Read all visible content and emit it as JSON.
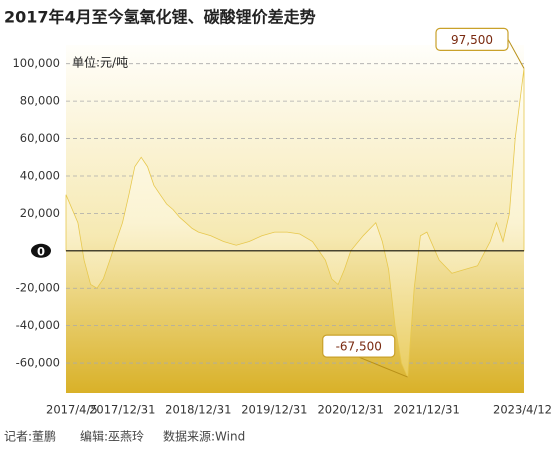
{
  "chart_data": {
    "type": "area",
    "title": "2017年4月至今氢氧化锂、碳酸锂价差走势",
    "unit_label": "单位:元/吨",
    "credits": [
      "记者:董鹏",
      "编辑:巫燕玲",
      "数据来源:Wind"
    ],
    "x": [
      "2017/4/5",
      "2017/6/1",
      "2017/7/1",
      "2017/8/1",
      "2017/9/1",
      "2017/10/1",
      "2017/11/1",
      "2017/12/1",
      "2018/1/1",
      "2018/2/1",
      "2018/3/1",
      "2018/4/1",
      "2018/5/1",
      "2018/6/1",
      "2018/7/1",
      "2018/8/1",
      "2018/9/1",
      "2018/10/1",
      "2018/11/1",
      "2018/12/1",
      "2019/1/1",
      "2019/3/1",
      "2019/5/1",
      "2019/7/1",
      "2019/9/1",
      "2019/11/1",
      "2020/1/1",
      "2020/3/1",
      "2020/5/1",
      "2020/7/1",
      "2020/9/1",
      "2020/10/1",
      "2020/11/1",
      "2020/12/1",
      "2021/1/1",
      "2021/3/1",
      "2021/5/1",
      "2021/6/1",
      "2021/7/1",
      "2021/8/1",
      "2021/9/1",
      "2021/10/1",
      "2021/11/1",
      "2021/12/1",
      "2022/1/1",
      "2022/3/1",
      "2022/5/1",
      "2022/7/1",
      "2022/9/1",
      "2022/11/1",
      "2022/12/1",
      "2023/1/1",
      "2023/2/1",
      "2023/3/1",
      "2023/4/12"
    ],
    "values": [
      30000,
      15000,
      -5000,
      -18000,
      -20000,
      -15000,
      -5000,
      5000,
      15000,
      30000,
      45000,
      50000,
      45000,
      35000,
      30000,
      25000,
      22000,
      18000,
      15000,
      12000,
      10000,
      8000,
      5000,
      3000,
      5000,
      8000,
      10000,
      10000,
      9000,
      5000,
      -5000,
      -15000,
      -18000,
      -10000,
      0,
      8000,
      15000,
      5000,
      -10000,
      -40000,
      -60000,
      -67500,
      -20000,
      8000,
      10000,
      -5000,
      -12000,
      -10000,
      -8000,
      5000,
      15000,
      5000,
      20000,
      60000,
      97500
    ],
    "value_labels": [
      null,
      null,
      null,
      null,
      null,
      null,
      null,
      null,
      null,
      null,
      null,
      null,
      null,
      null,
      null,
      null,
      null,
      null,
      null,
      null,
      null,
      null,
      null,
      null,
      null,
      null,
      null,
      null,
      null,
      null,
      null,
      null,
      null,
      null,
      null,
      null,
      null,
      null,
      null,
      null,
      null,
      "-67,500",
      null,
      null,
      null,
      null,
      null,
      null,
      null,
      null,
      null,
      null,
      null,
      null,
      "97,500"
    ],
    "xlim": [
      "2017/4/5",
      "2023/4/12"
    ],
    "xticks": [
      "2017/4/5",
      "2017/12/31",
      "2018/12/31",
      "2019/12/31",
      "2020/12/31",
      "2021/12/31",
      "2023/4/12"
    ],
    "ylim": [
      -76000,
      110000
    ],
    "yticks": [
      {
        "value": -60000,
        "label": "-60,000"
      },
      {
        "value": -40000,
        "label": "-40,000"
      },
      {
        "value": -20000,
        "label": "-20,000"
      },
      0,
      {
        "value": 20000,
        "label": "20,000"
      },
      {
        "value": 40000,
        "label": "40,000"
      },
      {
        "value": 60000,
        "label": "60,000"
      },
      {
        "value": 80000,
        "label": "80,000"
      },
      {
        "value": 100000,
        "label": "100,000"
      }
    ],
    "grid": true,
    "color": "#e7c84e"
  }
}
